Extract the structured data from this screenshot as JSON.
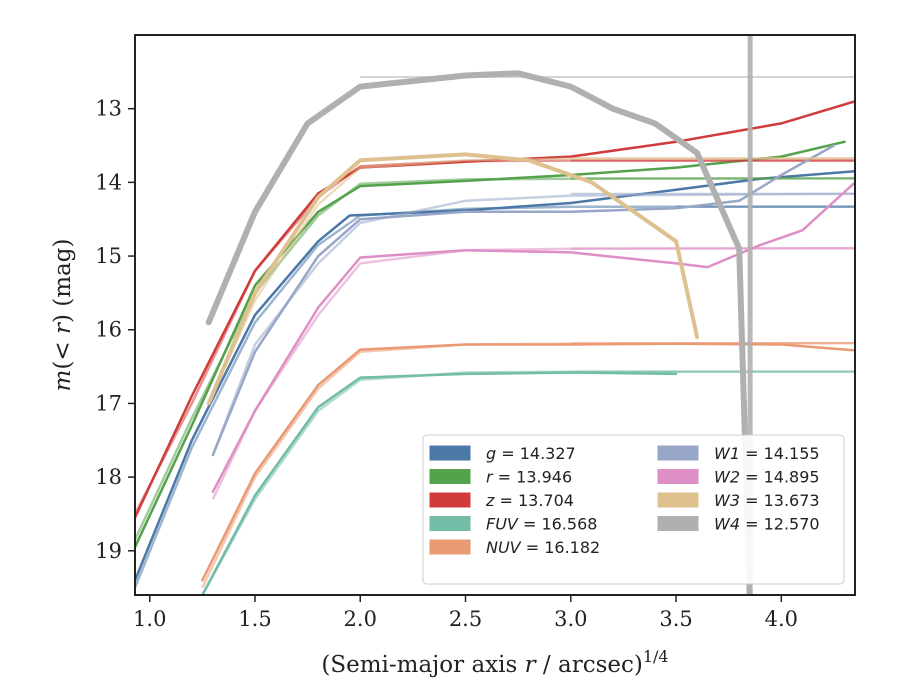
{
  "chart_data": {
    "type": "line",
    "xlabel": "(Semi-major axis r / arcsec)",
    "xlabel_parts": {
      "prefix": "(Semi-major axis ",
      "var": "r",
      "mid": " / arcsec)",
      "sup": "1/4"
    },
    "ylabel": "m(< r) (mag)",
    "ylabel_parts": {
      "m": "m",
      "open": "(",
      "lt": "<",
      "r": "r",
      "close": ")",
      "unit": " (mag)"
    },
    "xlim": [
      0.93,
      4.35
    ],
    "ylim": [
      19.6,
      12.0
    ],
    "y_inverted": true,
    "xticks": [
      1.0,
      1.5,
      2.0,
      2.5,
      3.0,
      3.5,
      4.0
    ],
    "xtick_labels": [
      "1.0",
      "1.5",
      "2.0",
      "2.5",
      "3.0",
      "3.5",
      "4.0"
    ],
    "yticks": [
      13,
      14,
      15,
      16,
      17,
      18,
      19
    ],
    "ytick_labels": [
      "13",
      "14",
      "15",
      "16",
      "17",
      "18",
      "19"
    ],
    "grid": false,
    "legend_position": "lower-right",
    "legend": [
      {
        "band": "g",
        "eq": " = 14.327",
        "color": "#4c78a8"
      },
      {
        "band": "r",
        "eq": " = 13.946",
        "color": "#54a24b"
      },
      {
        "band": "z",
        "eq": " = 13.704",
        "color": "#d03b3b"
      },
      {
        "band": "FUV",
        "eq": " = 16.568",
        "color": "#72bca8"
      },
      {
        "band": "NUV",
        "eq": " = 16.182",
        "color": "#ea9a74"
      },
      {
        "band": "W1",
        "eq": " = 14.155",
        "color": "#98a6c8"
      },
      {
        "band": "W2",
        "eq": " = 14.895",
        "color": "#de8fc6"
      },
      {
        "band": "W3",
        "eq": " = 13.673",
        "color": "#dfc08f"
      },
      {
        "band": "W4",
        "eq": " = 12.570",
        "color": "#b0b0b0"
      }
    ],
    "series": [
      {
        "name": "g",
        "color": "#4c78a8",
        "total": 14.327,
        "model": [
          [
            0.93,
            19.5
          ],
          [
            1.2,
            17.6
          ],
          [
            1.5,
            15.9
          ],
          [
            1.8,
            14.85
          ],
          [
            2.0,
            14.45
          ],
          [
            2.5,
            14.36
          ],
          [
            3.0,
            14.33
          ],
          [
            3.5,
            14.33
          ],
          [
            4.35,
            14.33
          ]
        ],
        "profile": [
          [
            0.93,
            19.4
          ],
          [
            1.2,
            17.5
          ],
          [
            1.5,
            15.8
          ],
          [
            1.8,
            14.8
          ],
          [
            1.95,
            14.45
          ],
          [
            2.5,
            14.38
          ],
          [
            3.0,
            14.28
          ],
          [
            3.5,
            14.1
          ],
          [
            3.9,
            13.95
          ],
          [
            4.35,
            13.85
          ]
        ]
      },
      {
        "name": "r",
        "color": "#54a24b",
        "total": 13.946,
        "model": [
          [
            0.93,
            18.85
          ],
          [
            1.2,
            17.2
          ],
          [
            1.5,
            15.5
          ],
          [
            1.8,
            14.45
          ],
          [
            2.0,
            14.02
          ],
          [
            2.5,
            13.96
          ],
          [
            3.0,
            13.95
          ],
          [
            4.35,
            13.946
          ]
        ],
        "profile": [
          [
            0.93,
            18.95
          ],
          [
            1.2,
            17.3
          ],
          [
            1.5,
            15.4
          ],
          [
            1.8,
            14.4
          ],
          [
            2.0,
            14.05
          ],
          [
            2.5,
            13.98
          ],
          [
            3.0,
            13.9
          ],
          [
            3.5,
            13.8
          ],
          [
            4.0,
            13.65
          ],
          [
            4.3,
            13.45
          ]
        ]
      },
      {
        "name": "z",
        "color": "#d03b3b",
        "total": 13.704,
        "model": [
          [
            0.93,
            18.5
          ],
          [
            1.2,
            17.0
          ],
          [
            1.5,
            15.2
          ],
          [
            1.8,
            14.2
          ],
          [
            2.0,
            13.78
          ],
          [
            2.5,
            13.71
          ],
          [
            3.0,
            13.705
          ],
          [
            4.35,
            13.704
          ]
        ],
        "profile": [
          [
            0.93,
            18.55
          ],
          [
            1.2,
            16.9
          ],
          [
            1.5,
            15.2
          ],
          [
            1.8,
            14.15
          ],
          [
            2.0,
            13.8
          ],
          [
            2.5,
            13.72
          ],
          [
            3.0,
            13.65
          ],
          [
            3.5,
            13.45
          ],
          [
            4.0,
            13.2
          ],
          [
            4.35,
            12.9
          ]
        ]
      },
      {
        "name": "FUV",
        "color": "#72bca8",
        "total": 16.568,
        "model": [
          [
            1.25,
            19.6
          ],
          [
            1.5,
            18.3
          ],
          [
            1.8,
            17.1
          ],
          [
            2.0,
            16.68
          ],
          [
            2.5,
            16.58
          ],
          [
            3.0,
            16.57
          ],
          [
            4.35,
            16.568
          ]
        ],
        "profile": [
          [
            1.25,
            19.6
          ],
          [
            1.5,
            18.25
          ],
          [
            1.8,
            17.05
          ],
          [
            2.0,
            16.65
          ],
          [
            2.5,
            16.6
          ],
          [
            3.0,
            16.58
          ],
          [
            3.5,
            16.6
          ]
        ]
      },
      {
        "name": "NUV",
        "color": "#ea9a74",
        "total": 16.182,
        "model": [
          [
            1.25,
            19.5
          ],
          [
            1.5,
            18.0
          ],
          [
            1.8,
            16.8
          ],
          [
            2.0,
            16.3
          ],
          [
            2.5,
            16.2
          ],
          [
            3.0,
            16.19
          ],
          [
            4.35,
            16.182
          ]
        ],
        "profile": [
          [
            1.25,
            19.4
          ],
          [
            1.5,
            17.95
          ],
          [
            1.8,
            16.75
          ],
          [
            2.0,
            16.27
          ],
          [
            2.5,
            16.2
          ],
          [
            3.0,
            16.2
          ],
          [
            3.5,
            16.19
          ],
          [
            4.0,
            16.2
          ],
          [
            4.35,
            16.28
          ]
        ]
      },
      {
        "name": "W1",
        "color": "#98a6c8",
        "total": 14.155,
        "model": [
          [
            1.3,
            17.7
          ],
          [
            1.5,
            16.2
          ],
          [
            1.8,
            15.1
          ],
          [
            2.0,
            14.55
          ],
          [
            2.5,
            14.25
          ],
          [
            3.0,
            14.18
          ],
          [
            4.35,
            14.155
          ]
        ],
        "profile": [
          [
            1.3,
            17.7
          ],
          [
            1.5,
            16.3
          ],
          [
            1.8,
            15.0
          ],
          [
            2.0,
            14.5
          ],
          [
            2.5,
            14.4
          ],
          [
            3.0,
            14.4
          ],
          [
            3.5,
            14.35
          ],
          [
            3.8,
            14.25
          ],
          [
            4.0,
            13.9
          ],
          [
            4.25,
            13.5
          ]
        ]
      },
      {
        "name": "W2",
        "color": "#de8fc6",
        "total": 14.895,
        "model": [
          [
            1.3,
            18.3
          ],
          [
            1.5,
            17.1
          ],
          [
            1.8,
            15.8
          ],
          [
            2.0,
            15.1
          ],
          [
            2.5,
            14.92
          ],
          [
            3.0,
            14.9
          ],
          [
            4.35,
            14.895
          ]
        ],
        "profile": [
          [
            1.3,
            18.2
          ],
          [
            1.5,
            17.1
          ],
          [
            1.8,
            15.7
          ],
          [
            2.0,
            15.02
          ],
          [
            2.5,
            14.92
          ],
          [
            3.0,
            14.95
          ],
          [
            3.5,
            15.1
          ],
          [
            3.65,
            15.15
          ],
          [
            3.9,
            14.85
          ],
          [
            4.1,
            14.65
          ],
          [
            4.35,
            14.0
          ]
        ]
      },
      {
        "name": "W3",
        "color": "#dfc08f",
        "total": 13.673,
        "model": [
          [
            1.28,
            17.0
          ],
          [
            1.5,
            15.6
          ],
          [
            1.8,
            14.3
          ],
          [
            2.0,
            13.8
          ],
          [
            2.5,
            13.7
          ],
          [
            3.0,
            13.68
          ],
          [
            4.35,
            13.673
          ]
        ],
        "profile": [
          [
            1.28,
            17.0
          ],
          [
            1.5,
            15.5
          ],
          [
            1.8,
            14.2
          ],
          [
            2.0,
            13.7
          ],
          [
            2.5,
            13.62
          ],
          [
            2.8,
            13.7
          ],
          [
            3.1,
            14.0
          ],
          [
            3.3,
            14.4
          ],
          [
            3.5,
            14.8
          ],
          [
            3.6,
            16.1
          ]
        ]
      },
      {
        "name": "W4",
        "color": "#b0b0b0",
        "total": 12.57,
        "model": [
          [
            4.35,
            12.57
          ]
        ],
        "profile": [
          [
            1.28,
            15.9
          ],
          [
            1.5,
            14.4
          ],
          [
            1.75,
            13.2
          ],
          [
            2.0,
            12.7
          ],
          [
            2.5,
            12.55
          ],
          [
            2.75,
            12.52
          ],
          [
            3.0,
            12.7
          ],
          [
            3.2,
            13.0
          ],
          [
            3.4,
            13.2
          ],
          [
            3.6,
            13.6
          ],
          [
            3.8,
            14.9
          ],
          [
            3.85,
            19.6
          ]
        ]
      }
    ]
  }
}
